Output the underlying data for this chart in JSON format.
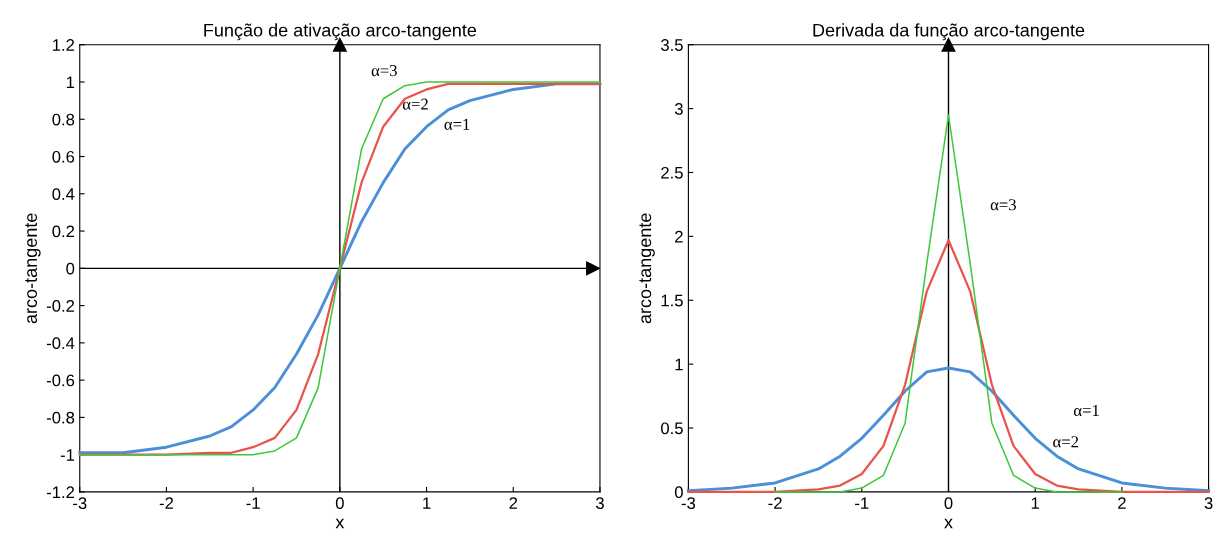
{
  "chart_data": [
    {
      "type": "line",
      "title": "Função de ativação arco-tangente",
      "xlabel": "x",
      "ylabel": "arco-tangente",
      "x": [
        -3,
        -2.5,
        -2,
        -1.5,
        -1.25,
        -1,
        -0.75,
        -0.5,
        -0.25,
        0,
        0.25,
        0.5,
        0.75,
        1,
        1.25,
        1.5,
        2,
        2.5,
        3
      ],
      "series": [
        {
          "color": "#4a8fd8",
          "values": [
            -0.99,
            -0.99,
            -0.96,
            -0.9,
            -0.85,
            -0.76,
            -0.64,
            -0.46,
            -0.25,
            0,
            0.25,
            0.46,
            0.64,
            0.76,
            0.85,
            0.9,
            0.96,
            0.99,
            0.99
          ]
        },
        {
          "color": "#e8534a",
          "values": [
            -1,
            -1,
            -1,
            -0.99,
            -0.99,
            -0.96,
            -0.91,
            -0.76,
            -0.46,
            0,
            0.46,
            0.76,
            0.91,
            0.96,
            0.99,
            0.99,
            0.99,
            0.99,
            0.99
          ]
        },
        {
          "color": "#3cc83c",
          "values": [
            -1,
            -1,
            -1,
            -1,
            -1,
            -1,
            -0.98,
            -0.91,
            -0.64,
            0,
            0.64,
            0.91,
            0.98,
            1,
            1,
            1,
            1,
            1,
            1
          ]
        }
      ],
      "xlim": [
        -3,
        3
      ],
      "xticks": [
        -3,
        -2,
        -1,
        0,
        1,
        2,
        3
      ],
      "ylim": [
        -1.2,
        1.2
      ],
      "yticks": [
        -1.2,
        -1,
        -0.8,
        -0.6,
        -0.4,
        -0.2,
        0,
        0.2,
        0.4,
        0.6,
        0.8,
        1,
        1.2
      ],
      "ref_lines": [
        {
          "axis": "x",
          "value": 0,
          "color": "#000000"
        },
        {
          "axis": "y",
          "value": 0,
          "color": "#000000"
        }
      ],
      "annotations": [
        "α=3",
        "α=2",
        "α=1"
      ],
      "grid": false,
      "legend": false
    },
    {
      "type": "line",
      "title": "Derivada da função arco-tangente",
      "xlabel": "x",
      "ylabel": "arco-tangente",
      "x": [
        -3,
        -2.5,
        -2,
        -1.5,
        -1.25,
        -1,
        -0.75,
        -0.5,
        -0.25,
        0,
        0.25,
        0.5,
        0.75,
        1,
        1.25,
        1.5,
        2,
        2.5,
        3
      ],
      "series": [
        {
          "color": "#4a8fd8",
          "values": [
            0.01,
            0.03,
            0.07,
            0.18,
            0.28,
            0.42,
            0.6,
            0.79,
            0.94,
            0.97,
            0.94,
            0.79,
            0.6,
            0.42,
            0.28,
            0.18,
            0.07,
            0.03,
            0.01
          ]
        },
        {
          "color": "#e8534a",
          "values": [
            0,
            0,
            0,
            0.02,
            0.05,
            0.14,
            0.36,
            0.84,
            1.57,
            1.97,
            1.57,
            0.84,
            0.36,
            0.14,
            0.05,
            0.02,
            0,
            0,
            0
          ]
        },
        {
          "color": "#3cc83c",
          "values": [
            null,
            null,
            0,
            0,
            0,
            0.03,
            0.13,
            0.54,
            1.79,
            2.95,
            1.79,
            0.54,
            0.13,
            0.03,
            0,
            0,
            0,
            null,
            null
          ]
        }
      ],
      "xlim": [
        -3,
        3
      ],
      "xticks": [
        -3,
        -2,
        -1,
        0,
        1,
        2,
        3
      ],
      "ylim": [
        0,
        3.5
      ],
      "yticks": [
        0,
        0.5,
        1,
        1.5,
        2,
        2.5,
        3,
        3.5
      ],
      "ref_lines": [
        {
          "axis": "x",
          "value": 0,
          "color": "#000000"
        }
      ],
      "annotations": [
        "α=3",
        "α=1",
        "α=2"
      ],
      "grid": false,
      "legend": false
    }
  ]
}
